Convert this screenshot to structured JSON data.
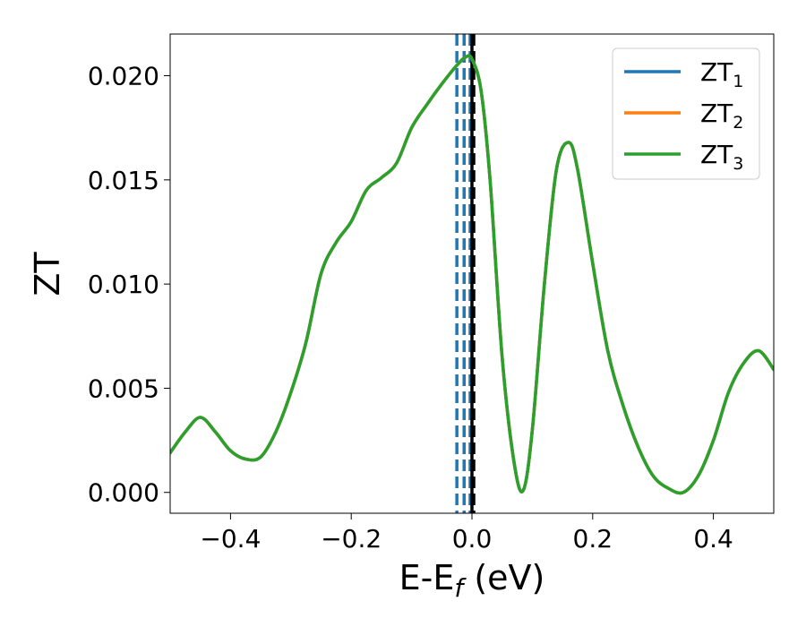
{
  "chart_data": {
    "type": "line",
    "xlabel": "E-E",
    "xlabel_sub": "f",
    "xlabel_unit": " (eV)",
    "ylabel": "ZT",
    "xlim": [
      -0.5,
      0.5
    ],
    "ylim": [
      -0.001,
      0.022
    ],
    "xticks": [
      -0.4,
      -0.2,
      0.0,
      0.2,
      0.4
    ],
    "xtick_labels": [
      "−0.4",
      "−0.2",
      "0.0",
      "0.2",
      "0.4"
    ],
    "yticks": [
      0.0,
      0.005,
      0.01,
      0.015,
      0.02
    ],
    "ytick_labels": [
      "0.000",
      "0.005",
      "0.010",
      "0.015",
      "0.020"
    ],
    "grid": false,
    "legend_position": "top-right",
    "vlines": [
      {
        "x": -0.025,
        "color": "#1f77b4",
        "style": "dashed"
      },
      {
        "x": -0.013,
        "color": "#1f77b4",
        "style": "dashed"
      },
      {
        "x": -0.003,
        "color": "#1f77b4",
        "style": "dashed"
      },
      {
        "x": 0.0,
        "color": "#000000",
        "style": "solid"
      },
      {
        "x": 0.003,
        "color": "#000000",
        "style": "dashed"
      }
    ],
    "x": [
      -0.5,
      -0.475,
      -0.45,
      -0.425,
      -0.4,
      -0.375,
      -0.35,
      -0.325,
      -0.3,
      -0.275,
      -0.25,
      -0.225,
      -0.2,
      -0.175,
      -0.15,
      -0.125,
      -0.1,
      -0.075,
      -0.05,
      -0.025,
      -0.01,
      0.0,
      0.015,
      0.03,
      0.05,
      0.07,
      0.085,
      0.1,
      0.12,
      0.14,
      0.16,
      0.175,
      0.2,
      0.225,
      0.25,
      0.275,
      0.3,
      0.325,
      0.35,
      0.375,
      0.4,
      0.425,
      0.45,
      0.475,
      0.5
    ],
    "series": [
      {
        "name": "ZT",
        "name_sub": "1",
        "color": "#1f77b4",
        "values": [
          0.0019,
          0.0029,
          0.0036,
          0.0029,
          0.002,
          0.0016,
          0.0017,
          0.0029,
          0.0048,
          0.0072,
          0.0105,
          0.012,
          0.013,
          0.0145,
          0.0151,
          0.0158,
          0.0175,
          0.0186,
          0.0196,
          0.0205,
          0.0209,
          0.0208,
          0.0193,
          0.015,
          0.0065,
          0.0014,
          0.0001,
          0.003,
          0.01,
          0.0155,
          0.0168,
          0.0155,
          0.011,
          0.0068,
          0.0042,
          0.0022,
          0.0008,
          0.0002,
          0.0,
          0.0008,
          0.0025,
          0.0048,
          0.0062,
          0.0068,
          0.0059
        ]
      },
      {
        "name": "ZT",
        "name_sub": "2",
        "color": "#ff7f0e",
        "values": [
          0.0019,
          0.0029,
          0.0036,
          0.0029,
          0.002,
          0.0016,
          0.0017,
          0.0029,
          0.0048,
          0.0072,
          0.0105,
          0.012,
          0.013,
          0.0145,
          0.0151,
          0.0158,
          0.0175,
          0.0186,
          0.0196,
          0.0205,
          0.0209,
          0.0208,
          0.0193,
          0.015,
          0.0065,
          0.0014,
          0.0001,
          0.003,
          0.01,
          0.0155,
          0.0168,
          0.0155,
          0.011,
          0.0068,
          0.0042,
          0.0022,
          0.0008,
          0.0002,
          0.0,
          0.0008,
          0.0025,
          0.0048,
          0.0062,
          0.0068,
          0.0059
        ]
      },
      {
        "name": "ZT",
        "name_sub": "3",
        "color": "#2ca02c",
        "values": [
          0.0019,
          0.0029,
          0.0036,
          0.0029,
          0.002,
          0.0016,
          0.0017,
          0.0029,
          0.0048,
          0.0072,
          0.0105,
          0.012,
          0.013,
          0.0145,
          0.0151,
          0.0158,
          0.0175,
          0.0186,
          0.0196,
          0.0205,
          0.0209,
          0.0208,
          0.0193,
          0.015,
          0.0065,
          0.0014,
          0.0001,
          0.003,
          0.01,
          0.0155,
          0.0168,
          0.0155,
          0.011,
          0.0068,
          0.0042,
          0.0022,
          0.0008,
          0.0002,
          0.0,
          0.0008,
          0.0025,
          0.0048,
          0.0062,
          0.0068,
          0.0059
        ]
      }
    ]
  }
}
